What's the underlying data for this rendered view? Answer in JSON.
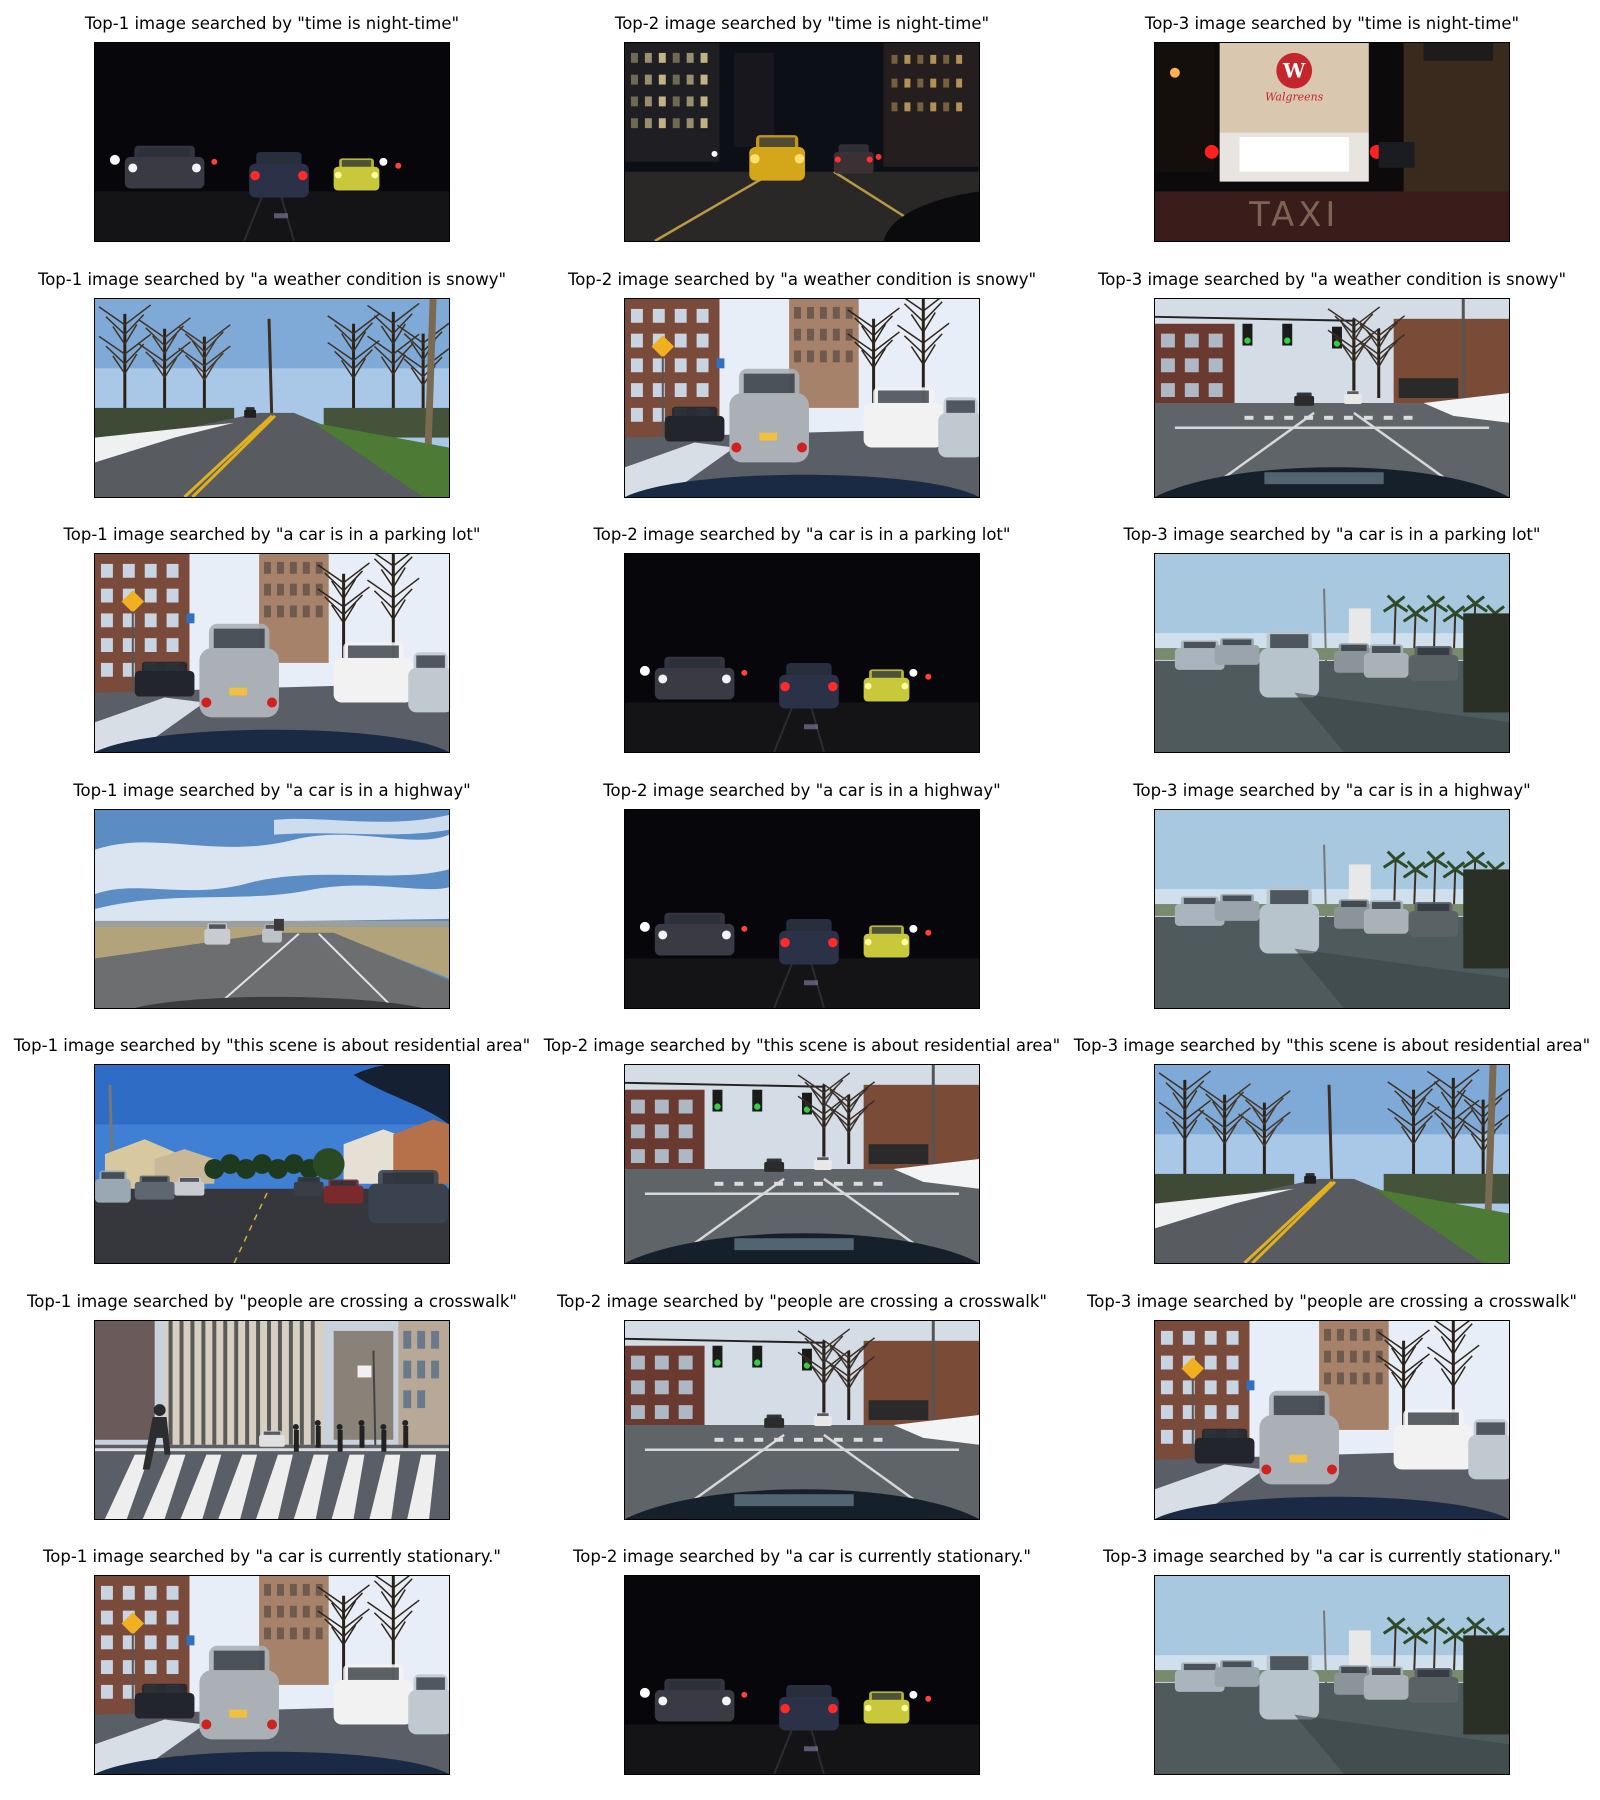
{
  "grid": {
    "columns": 3,
    "rows": [
      {
        "query": "time is night-time",
        "cells": [
          {
            "title": "Top-1 image searched by \"time is night-time\"",
            "scene": "night-traffic"
          },
          {
            "title": "Top-2 image searched by \"time is night-time\"",
            "scene": "night-city-taxi"
          },
          {
            "title": "Top-3 image searched by \"time is night-time\"",
            "scene": "night-truck",
            "text_in_image": [
              "W",
              "Walgreens",
              "TAXI"
            ]
          }
        ]
      },
      {
        "query": "a weather condition is snowy",
        "cells": [
          {
            "title": "Top-1 image searched by \"a weather condition is snowy\"",
            "scene": "snowy-road-trees"
          },
          {
            "title": "Top-2 image searched by \"a weather condition is snowy\"",
            "scene": "snowy-city-street"
          },
          {
            "title": "Top-3 image searched by \"a weather condition is snowy\"",
            "scene": "intersection-signals"
          }
        ]
      },
      {
        "query": "a car is in a parking lot",
        "cells": [
          {
            "title": "Top-1 image searched by \"a car is in a parking lot\"",
            "scene": "snowy-city-street"
          },
          {
            "title": "Top-2 image searched by \"a car is in a parking lot\"",
            "scene": "night-traffic"
          },
          {
            "title": "Top-3 image searched by \"a car is in a parking lot\"",
            "scene": "parking-lot-palms"
          }
        ]
      },
      {
        "query": "a car is in a highway",
        "cells": [
          {
            "title": "Top-1 image searched by \"a car is in a highway\"",
            "scene": "highway-clouds"
          },
          {
            "title": "Top-2 image searched by \"a car is in a highway\"",
            "scene": "night-traffic"
          },
          {
            "title": "Top-3 image searched by \"a car is in a highway\"",
            "scene": "parking-lot-palms"
          }
        ]
      },
      {
        "query": "this scene is about residential area",
        "cells": [
          {
            "title": "Top-1 image searched by \"this scene is about residential area\"",
            "scene": "residential-street"
          },
          {
            "title": "Top-2 image searched by \"this scene is about residential area\"",
            "scene": "intersection-signals"
          },
          {
            "title": "Top-3 image searched by \"this scene is about residential area\"",
            "scene": "snowy-road-trees"
          }
        ]
      },
      {
        "query": "people are crossing a crosswalk",
        "cells": [
          {
            "title": "Top-1 image searched by \"people are crossing a crosswalk\"",
            "scene": "crosswalk-pedestrians"
          },
          {
            "title": "Top-2 image searched by \"people are crossing a crosswalk\"",
            "scene": "intersection-signals"
          },
          {
            "title": "Top-3 image searched by \"people are crossing a crosswalk\"",
            "scene": "snowy-city-street"
          }
        ]
      },
      {
        "query": "a car is currently stationary.",
        "cells": [
          {
            "title": "Top-1 image searched by \"a car is currently stationary.\"",
            "scene": "snowy-city-street"
          },
          {
            "title": "Top-2 image searched by \"a car is currently stationary.\"",
            "scene": "night-traffic"
          },
          {
            "title": "Top-3 image searched by \"a car is currently stationary.\"",
            "scene": "parking-lot-palms"
          }
        ]
      }
    ]
  }
}
